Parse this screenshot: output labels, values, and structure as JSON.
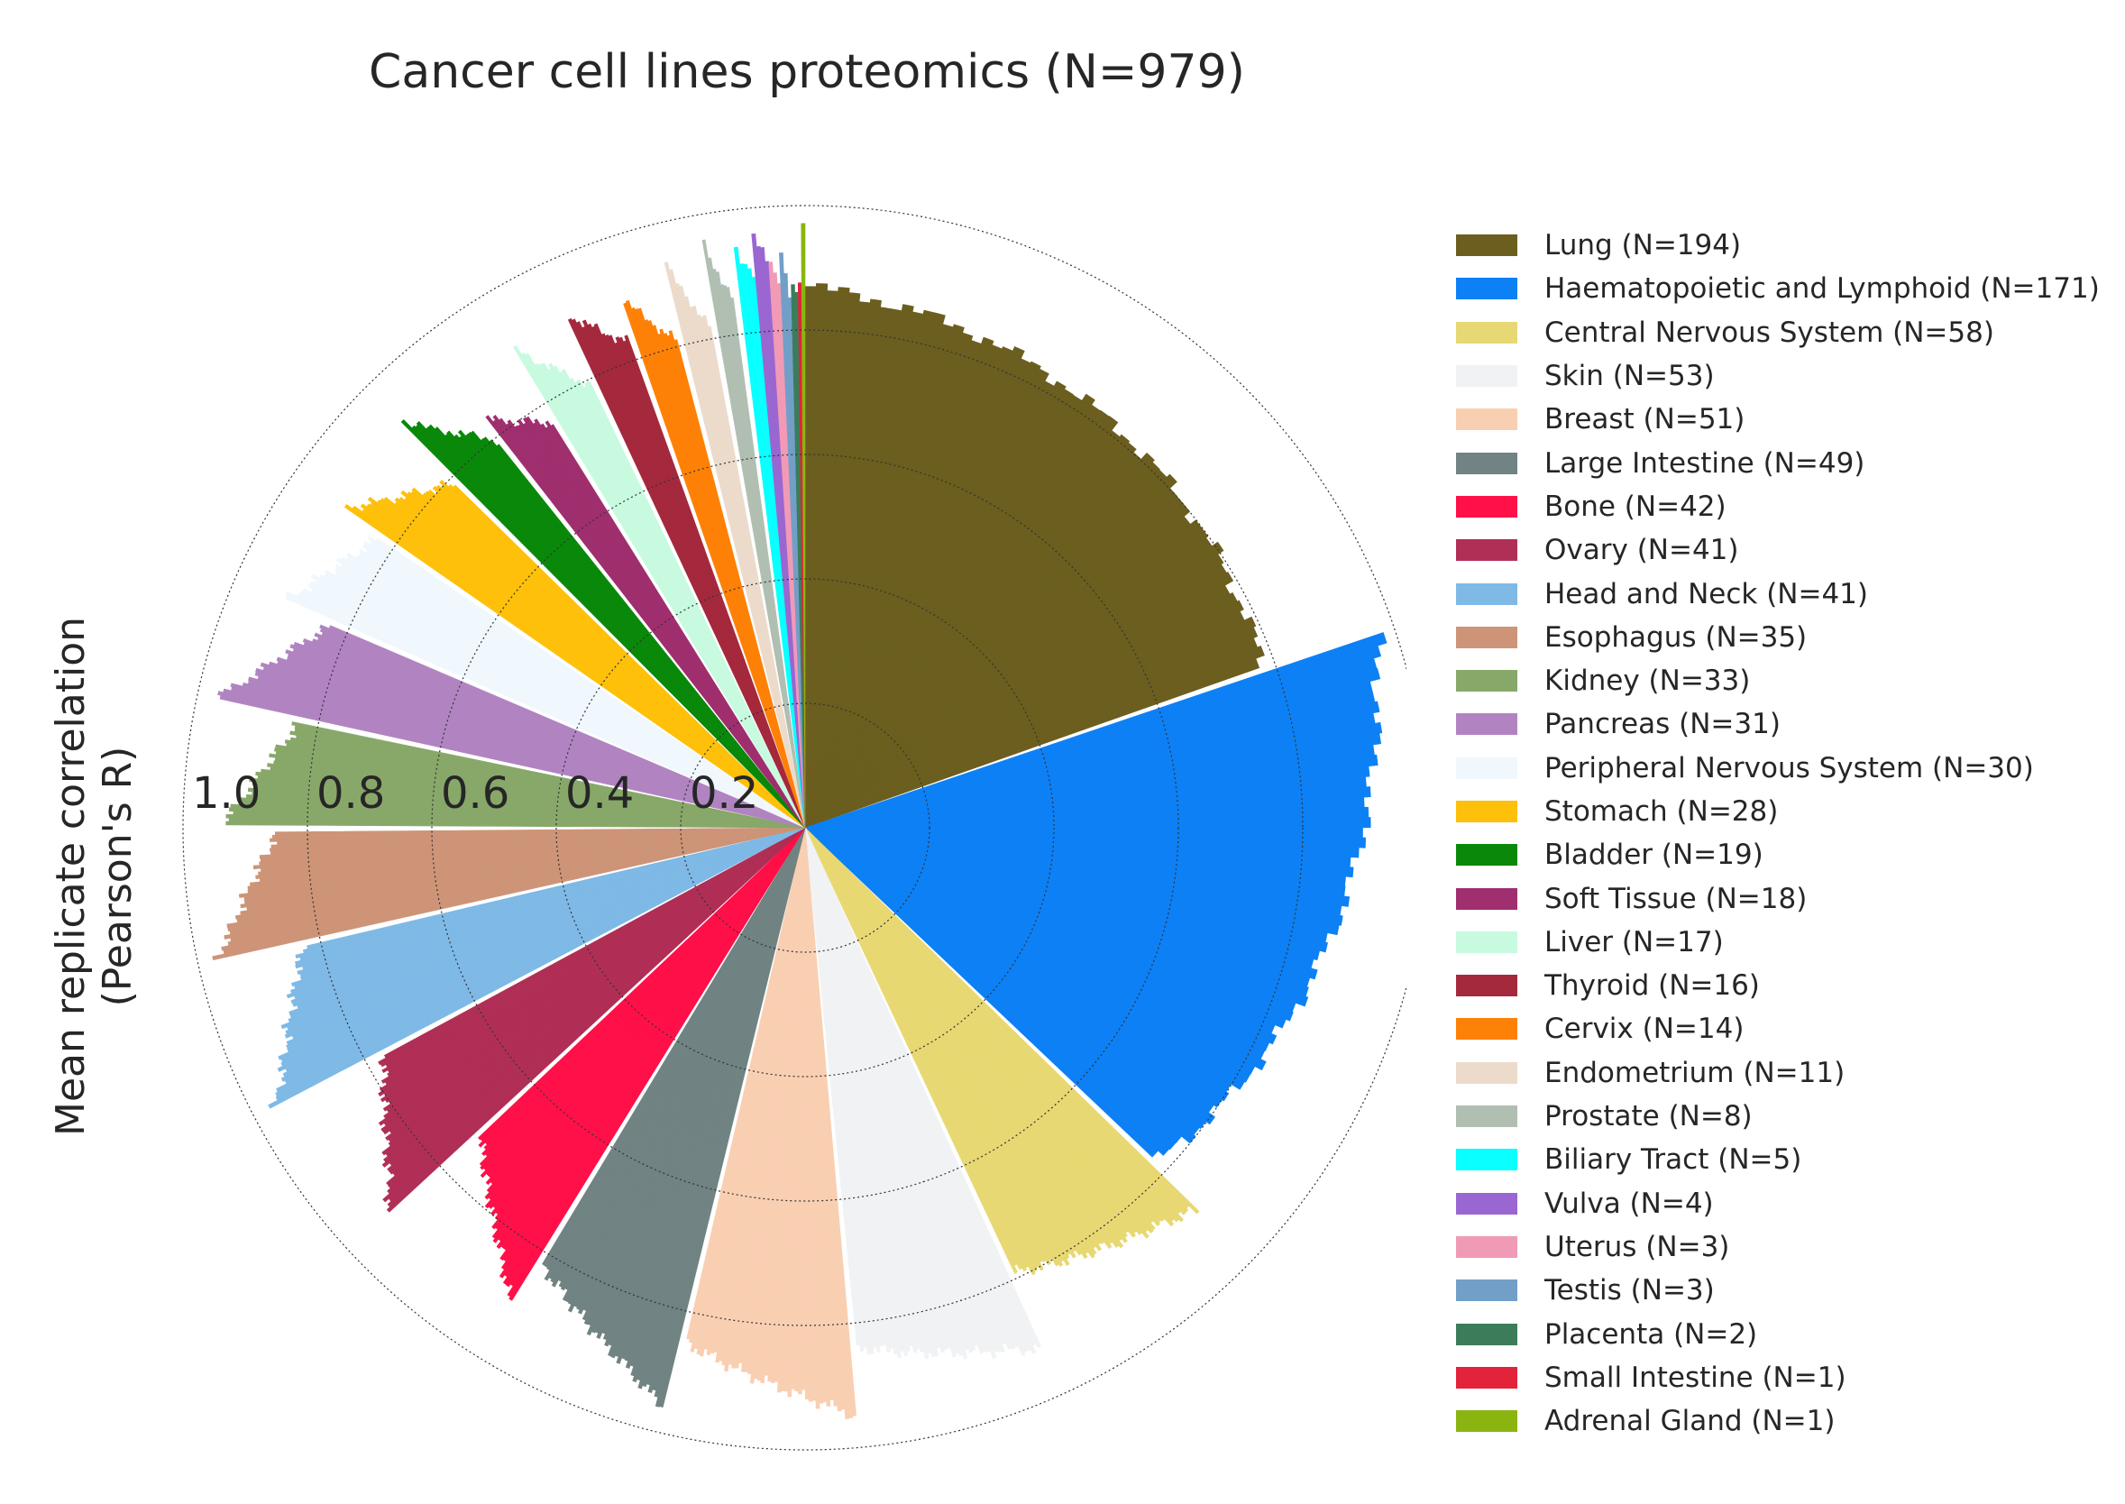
{
  "chart_data": {
    "type": "polar-bar",
    "title": "Cancer cell lines proteomics (N=979)",
    "ylabel": [
      "Mean replicate correlation",
      "(Pearson's R)"
    ],
    "rlim": [
      0,
      1.0
    ],
    "r_ticks": [
      0.2,
      0.4,
      0.6,
      0.8,
      1.0
    ],
    "r_tick_labels": [
      "0.2",
      "0.4",
      "0.6",
      "0.8",
      "1.0"
    ],
    "grid": true,
    "legend_position": "right",
    "series": [
      {
        "name": "Lung (N=194)",
        "n": 194,
        "color": "#6b5e1f",
        "rmax": 0.87,
        "rmin": 0.78
      },
      {
        "name": "Haematopoietic and Lymphoid (N=171)",
        "n": 171,
        "color": "#0d80f5",
        "rmax": 0.97,
        "rmin": 0.78
      },
      {
        "name": "Central Nervous System (N=58)",
        "n": 58,
        "color": "#e8d873",
        "rmax": 0.88,
        "rmin": 0.79
      },
      {
        "name": "Skin (N=53)",
        "n": 53,
        "color": "#f0f2f4",
        "rmax": 0.92,
        "rmin": 0.84
      },
      {
        "name": "Breast (N=51)",
        "n": 51,
        "color": "#f9cfb2",
        "rmax": 0.95,
        "rmin": 0.85
      },
      {
        "name": "Large Intestine (N=49)",
        "n": 49,
        "color": "#718383",
        "rmax": 0.96,
        "rmin": 0.82
      },
      {
        "name": "Bone (N=42)",
        "n": 42,
        "color": "#ff1048",
        "rmax": 0.9,
        "rmin": 0.72
      },
      {
        "name": "Ovary (N=41)",
        "n": 41,
        "color": "#b02f56",
        "rmax": 0.91,
        "rmin": 0.77
      },
      {
        "name": "Head and Neck (N=41)",
        "n": 41,
        "color": "#7fb9e6",
        "rmax": 0.96,
        "rmin": 0.83
      },
      {
        "name": "Esophagus (N=35)",
        "n": 35,
        "color": "#cd9478",
        "rmax": 0.97,
        "rmin": 0.85
      },
      {
        "name": "Kidney (N=33)",
        "n": 33,
        "color": "#88a86a",
        "rmax": 0.94,
        "rmin": 0.83
      },
      {
        "name": "Pancreas (N=31)",
        "n": 31,
        "color": "#b184c1",
        "rmax": 0.97,
        "rmin": 0.83
      },
      {
        "name": "Peripheral Nervous System (N=30)",
        "n": 30,
        "color": "#f0f7fd",
        "rmax": 0.91,
        "rmin": 0.83
      },
      {
        "name": "Stomach (N=28)",
        "n": 28,
        "color": "#fec00a",
        "rmax": 0.9,
        "rmin": 0.79
      },
      {
        "name": "Bladder (N=19)",
        "n": 19,
        "color": "#0a880a",
        "rmax": 0.92,
        "rmin": 0.8
      },
      {
        "name": "Soft Tissue (N=18)",
        "n": 18,
        "color": "#9f2f6e",
        "rmax": 0.83,
        "rmin": 0.77
      },
      {
        "name": "Liver (N=17)",
        "n": 17,
        "color": "#c8fae0",
        "rmax": 0.9,
        "rmin": 0.79
      },
      {
        "name": "Thyroid (N=16)",
        "n": 16,
        "color": "#a5293d",
        "rmax": 0.91,
        "rmin": 0.83
      },
      {
        "name": "Cervix (N=14)",
        "n": 14,
        "color": "#fe8107",
        "rmax": 0.9,
        "rmin": 0.81
      },
      {
        "name": "Endometrium (N=11)",
        "n": 11,
        "color": "#ecdbcb",
        "rmax": 0.93,
        "rmin": 0.82
      },
      {
        "name": "Prostate (N=8)",
        "n": 8,
        "color": "#b0bfb2",
        "rmax": 0.95,
        "rmin": 0.86
      },
      {
        "name": "Biliary Tract (N=5)",
        "n": 5,
        "color": "#0affff",
        "rmax": 0.94,
        "rmin": 0.89
      },
      {
        "name": "Vulva (N=4)",
        "n": 4,
        "color": "#9a66d1",
        "rmax": 0.96,
        "rmin": 0.91
      },
      {
        "name": "Uterus (N=3)",
        "n": 3,
        "color": "#f19ab6",
        "rmax": 0.91,
        "rmin": 0.87
      },
      {
        "name": "Testis (N=3)",
        "n": 3,
        "color": "#729fc8",
        "rmax": 0.93,
        "rmin": 0.86
      },
      {
        "name": "Placenta (N=2)",
        "n": 2,
        "color": "#3d7c5a",
        "rmax": 0.88,
        "rmin": 0.86
      },
      {
        "name": "Small Intestine (N=1)",
        "n": 1,
        "color": "#e2233a",
        "rmax": 0.87,
        "rmin": 0.87
      },
      {
        "name": "Adrenal Gland (N=1)",
        "n": 1,
        "color": "#8ab511",
        "rmax": 0.96,
        "rmin": 0.96
      }
    ]
  }
}
